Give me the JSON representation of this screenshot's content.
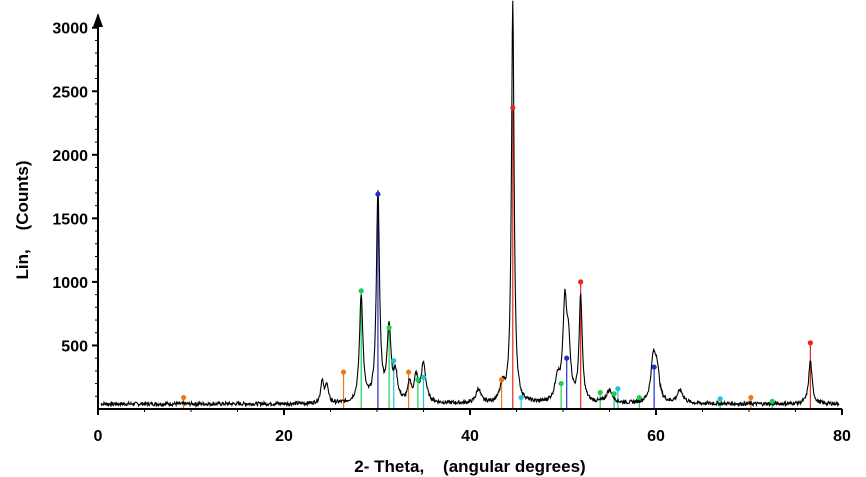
{
  "chart_data": {
    "type": "line",
    "title": "",
    "xlabel": "2- Theta,    (angular degrees)",
    "ylabel": "Lin,    (Counts)",
    "xlim": [
      0,
      80
    ],
    "ylim": [
      0,
      3100
    ],
    "x_ticks": [
      0,
      20,
      40,
      60,
      80
    ],
    "y_ticks": [
      500,
      1000,
      1500,
      2000,
      2500,
      3000
    ],
    "grid": false,
    "legend": "none",
    "baseline": 40,
    "series": [
      {
        "color": "#000000",
        "peaks": [
          {
            "x": 24.1,
            "y": 180,
            "w": 0.18
          },
          {
            "x": 24.6,
            "y": 150,
            "w": 0.18
          },
          {
            "x": 28.3,
            "y": 840,
            "w": 0.22
          },
          {
            "x": 30.1,
            "y": 1650,
            "w": 0.2
          },
          {
            "x": 31.3,
            "y": 580,
            "w": 0.25
          },
          {
            "x": 32.0,
            "y": 200,
            "w": 0.25
          },
          {
            "x": 33.5,
            "y": 150,
            "w": 0.2
          },
          {
            "x": 34.2,
            "y": 190,
            "w": 0.25
          },
          {
            "x": 35.0,
            "y": 300,
            "w": 0.3
          },
          {
            "x": 40.9,
            "y": 110,
            "w": 0.3
          },
          {
            "x": 43.5,
            "y": 130,
            "w": 0.3
          },
          {
            "x": 44.6,
            "y": 3150,
            "w": 0.17
          },
          {
            "x": 49.4,
            "y": 180,
            "w": 0.3
          },
          {
            "x": 50.2,
            "y": 740,
            "w": 0.25
          },
          {
            "x": 50.6,
            "y": 400,
            "w": 0.25
          },
          {
            "x": 51.9,
            "y": 830,
            "w": 0.2
          },
          {
            "x": 55.0,
            "y": 100,
            "w": 0.4
          },
          {
            "x": 59.7,
            "y": 320,
            "w": 0.3
          },
          {
            "x": 60.1,
            "y": 250,
            "w": 0.3
          },
          {
            "x": 62.6,
            "y": 100,
            "w": 0.4
          },
          {
            "x": 76.6,
            "y": 340,
            "w": 0.22
          }
        ]
      }
    ],
    "reference_markers": [
      {
        "color": "#e8261c",
        "points": [
          [
            44.6,
            2370
          ],
          [
            51.9,
            1000
          ],
          [
            76.6,
            520
          ]
        ]
      },
      {
        "color": "#2030c8",
        "points": [
          [
            30.1,
            1690
          ],
          [
            50.4,
            400
          ],
          [
            59.8,
            330
          ]
        ]
      },
      {
        "color": "#19d24a",
        "points": [
          [
            28.3,
            930
          ],
          [
            31.3,
            640
          ],
          [
            34.4,
            230
          ],
          [
            49.8,
            200
          ],
          [
            54.0,
            130
          ],
          [
            55.5,
            120
          ],
          [
            58.2,
            90
          ],
          [
            72.5,
            60
          ]
        ]
      },
      {
        "color": "#20c4d8",
        "points": [
          [
            31.8,
            380
          ],
          [
            35.0,
            250
          ],
          [
            45.5,
            90
          ],
          [
            55.9,
            160
          ],
          [
            66.9,
            80
          ]
        ]
      },
      {
        "color": "#f07818",
        "points": [
          [
            9.2,
            90
          ],
          [
            26.4,
            290
          ],
          [
            33.4,
            290
          ],
          [
            43.4,
            230
          ],
          [
            70.2,
            90
          ]
        ]
      }
    ]
  }
}
